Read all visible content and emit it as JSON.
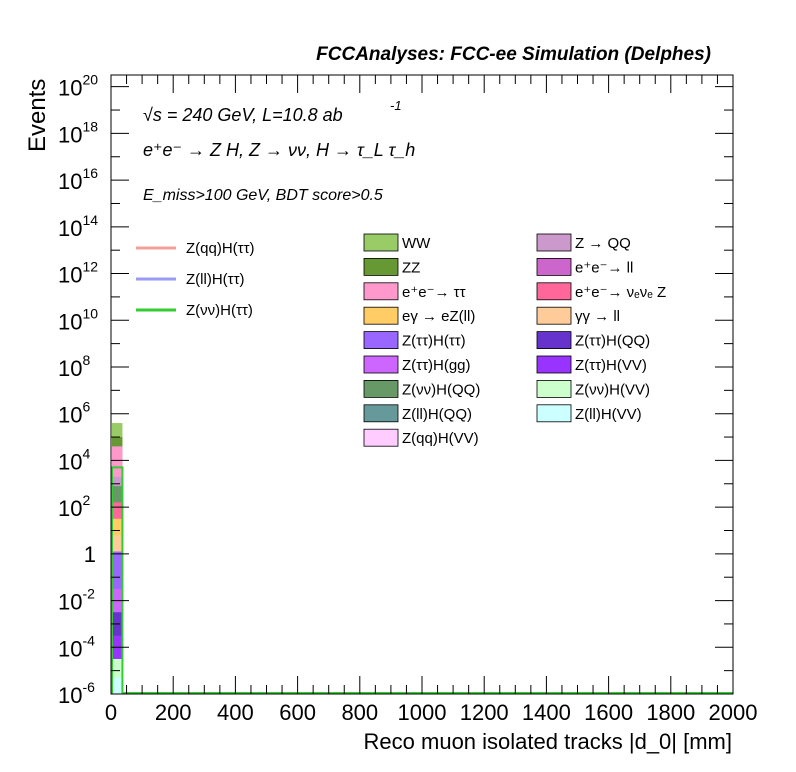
{
  "chart_data": {
    "type": "bar",
    "title": "FCCAnalyses: FCC-ee Simulation (Delphes)",
    "xlabel": "Reco muon isolated tracks |d_0| [mm]",
    "ylabel": "Events",
    "xlim": [
      0,
      2000
    ],
    "ylim_log10": [
      -6,
      20.5
    ],
    "y_scale": "log",
    "x_ticks": [
      "0",
      "200",
      "400",
      "600",
      "800",
      "1000",
      "1200",
      "1400",
      "1600",
      "1800",
      "2000"
    ],
    "y_ticks": [
      {
        "exp": 20,
        "label": "10",
        "sup": "20"
      },
      {
        "exp": 18,
        "label": "10",
        "sup": "18"
      },
      {
        "exp": 16,
        "label": "10",
        "sup": "16"
      },
      {
        "exp": 14,
        "label": "10",
        "sup": "14"
      },
      {
        "exp": 12,
        "label": "10",
        "sup": "12"
      },
      {
        "exp": 10,
        "label": "10",
        "sup": "10"
      },
      {
        "exp": 8,
        "label": "10",
        "sup": "8"
      },
      {
        "exp": 6,
        "label": "10",
        "sup": "6"
      },
      {
        "exp": 4,
        "label": "10",
        "sup": "4"
      },
      {
        "exp": 2,
        "label": "10",
        "sup": "2"
      },
      {
        "exp": 0,
        "label": "1",
        "sup": ""
      },
      {
        "exp": -2,
        "label": "10",
        "sup": "-2"
      },
      {
        "exp": -4,
        "label": "10",
        "sup": "-4"
      },
      {
        "exp": -6,
        "label": "10",
        "sup": "-6"
      }
    ],
    "annotations": {
      "energy": "√s = 240 GeV, L=10.8 ab",
      "energy_exp": "-1",
      "process": "e⁺e⁻ → Z H, Z → νν, H → τ_L τ_h",
      "cuts": "E_miss>100 GeV, BDT score>0.5"
    },
    "signal_legend": [
      {
        "name": "Z(qq)H(ττ)",
        "color": "#f4a09a"
      },
      {
        "name": "Z(ll)H(ττ)",
        "color": "#9a9af4"
      },
      {
        "name": "Z(νν)H(ττ)",
        "color": "#33cc33"
      }
    ],
    "background_legend_left": [
      {
        "name": "WW",
        "color": "#99cc66"
      },
      {
        "name": "ZZ",
        "color": "#669933"
      },
      {
        "name": "e⁺e⁻→ ττ",
        "color": "#ff99cc"
      },
      {
        "name": "eγ → eZ(ll)",
        "color": "#ffcc66"
      },
      {
        "name": "Z(ττ)H(ττ)",
        "color": "#9966ff"
      },
      {
        "name": "Z(ττ)H(gg)",
        "color": "#cc66ff"
      },
      {
        "name": "Z(νν)H(QQ)",
        "color": "#669966"
      },
      {
        "name": "Z(ll)H(QQ)",
        "color": "#669999"
      },
      {
        "name": "Z(qq)H(VV)",
        "color": "#ffccff"
      }
    ],
    "background_legend_right": [
      {
        "name": "Z → QQ",
        "color": "#cc99cc"
      },
      {
        "name": "e⁺e⁻→ ll",
        "color": "#cc66cc"
      },
      {
        "name": "e⁺e⁻→ νₑνₑ Z",
        "color": "#ff6699"
      },
      {
        "name": "γγ → ll",
        "color": "#ffcc99"
      },
      {
        "name": "Z(ττ)H(QQ)",
        "color": "#6633cc"
      },
      {
        "name": "Z(ττ)H(VV)",
        "color": "#9933ff"
      },
      {
        "name": "Z(νν)H(VV)",
        "color": "#ccffcc"
      },
      {
        "name": "Z(ll)H(VV)",
        "color": "#ccffff"
      }
    ],
    "stack_first_bin": [
      {
        "name": "Z(ll)H(VV)",
        "color": "#ccffff",
        "log_top": -5.3
      },
      {
        "name": "Z(νν)H(VV)",
        "color": "#ccffcc",
        "log_top": -4.5
      },
      {
        "name": "Z(ττ)H(VV)",
        "color": "#9933ff",
        "log_top": -3.5
      },
      {
        "name": "Z(ττ)H(QQ)",
        "color": "#6633cc",
        "log_top": -2.5
      },
      {
        "name": "Z(ττ)H(gg)",
        "color": "#cc66ff",
        "log_top": -1.5
      },
      {
        "name": "Z(ττ)H(ττ)",
        "color": "#9966ff",
        "log_top": 0.1
      },
      {
        "name": "γγ → ll",
        "color": "#ffcc99",
        "log_top": 0.8
      },
      {
        "name": "eγ → eZ(ll)",
        "color": "#ffcc66",
        "log_top": 1.5
      },
      {
        "name": "e⁺e⁻→ νₑνₑ Z",
        "color": "#ff6699",
        "log_top": 2.2
      },
      {
        "name": "Z(νν)H(QQ)",
        "color": "#669966",
        "log_top": 2.9
      },
      {
        "name": "Z → QQ",
        "color": "#cc99cc",
        "log_top": 3.3
      },
      {
        "name": "e⁺e⁻→ ττ",
        "color": "#ff99cc",
        "log_top": 4.6
      },
      {
        "name": "ZZ",
        "color": "#669933",
        "log_top": 5.0
      },
      {
        "name": "WW",
        "color": "#99cc66",
        "log_top": 5.6
      }
    ],
    "signal_first_bin": [
      {
        "name": "Z(νν)H(ττ)",
        "color": "#33cc33",
        "log_value": 3.7
      }
    ],
    "first_bin_x": [
      0,
      40
    ]
  }
}
